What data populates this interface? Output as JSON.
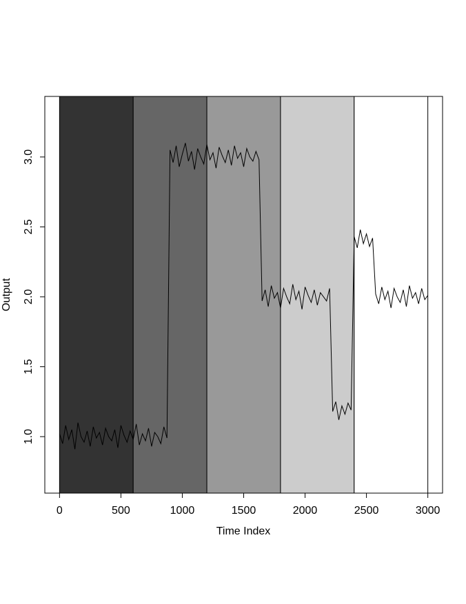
{
  "chart_data": {
    "type": "line",
    "xlabel": "Time Index",
    "ylabel": "Output",
    "xlim": [
      -120,
      3120
    ],
    "ylim": [
      0.596,
      3.433
    ],
    "xticks": [
      0,
      500,
      1000,
      1500,
      2000,
      2500,
      3000
    ],
    "yticks": [
      {
        "value": 1,
        "label": "1.0"
      },
      1.5,
      {
        "value": 2,
        "label": "2.0"
      },
      2.5,
      {
        "value": 3,
        "label": "3.0"
      }
    ],
    "regions": [
      {
        "start": 0,
        "end": 600,
        "color": "#333333"
      },
      {
        "start": 600,
        "end": 1200,
        "color": "#666666"
      },
      {
        "start": 1200,
        "end": 1800,
        "color": "#999999"
      },
      {
        "start": 1800,
        "end": 2400,
        "color": "#cccccc"
      },
      {
        "start": 2400,
        "end": 3000,
        "color": "#ffffff"
      }
    ],
    "x": [
      0,
      25,
      50,
      75,
      100,
      125,
      150,
      175,
      200,
      225,
      250,
      275,
      300,
      325,
      350,
      375,
      400,
      425,
      450,
      475,
      500,
      525,
      550,
      575,
      600,
      625,
      650,
      675,
      700,
      725,
      750,
      775,
      800,
      825,
      850,
      875,
      900,
      925,
      950,
      975,
      1000,
      1025,
      1050,
      1075,
      1100,
      1125,
      1150,
      1175,
      1200,
      1225,
      1250,
      1275,
      1300,
      1325,
      1350,
      1375,
      1400,
      1425,
      1450,
      1475,
      1500,
      1525,
      1550,
      1575,
      1600,
      1625,
      1650,
      1675,
      1700,
      1725,
      1750,
      1775,
      1800,
      1825,
      1850,
      1875,
      1900,
      1925,
      1950,
      1975,
      2000,
      2025,
      2050,
      2075,
      2100,
      2125,
      2150,
      2175,
      2200,
      2225,
      2250,
      2275,
      2300,
      2325,
      2350,
      2375,
      2400,
      2425,
      2450,
      2475,
      2500,
      2525,
      2550,
      2575,
      2600,
      2625,
      2650,
      2675,
      2700,
      2725,
      2750,
      2775,
      2800,
      2825,
      2850,
      2875,
      2900,
      2925,
      2950,
      2975,
      3000
    ],
    "series": [
      {
        "color": "#000000",
        "values": [
          1.02,
          0.95,
          1.08,
          0.98,
          1.05,
          0.91,
          1.1,
          1.0,
          0.96,
          1.04,
          0.93,
          1.07,
          0.99,
          1.03,
          0.94,
          1.06,
          1.0,
          0.97,
          1.05,
          0.92,
          1.08,
          1.01,
          0.96,
          1.04,
          0.98,
          1.09,
          0.94,
          1.02,
          0.97,
          1.06,
          0.93,
          1.03,
          1.0,
          0.95,
          1.07,
          0.99,
          3.05,
          2.96,
          3.08,
          2.93,
          3.02,
          3.1,
          2.97,
          3.04,
          2.91,
          3.06,
          3.0,
          2.95,
          3.09,
          2.98,
          3.03,
          2.92,
          3.07,
          3.01,
          2.96,
          3.05,
          2.94,
          3.08,
          2.99,
          3.03,
          2.93,
          3.06,
          3.0,
          2.97,
          3.04,
          2.98,
          1.97,
          2.05,
          1.93,
          2.08,
          1.99,
          2.03,
          1.92,
          2.06,
          2.0,
          1.95,
          2.09,
          1.98,
          2.04,
          1.91,
          2.07,
          2.01,
          1.96,
          2.05,
          1.94,
          2.03,
          2.0,
          1.97,
          2.06,
          1.18,
          1.25,
          1.12,
          1.22,
          1.16,
          1.24,
          1.19,
          2.43,
          2.35,
          2.48,
          2.38,
          2.45,
          2.36,
          2.42,
          2.02,
          1.95,
          2.07,
          1.98,
          2.04,
          1.92,
          2.06,
          2.0,
          1.96,
          2.05,
          1.93,
          2.08,
          1.99,
          2.03,
          1.95,
          2.06,
          1.98,
          2.01
        ]
      }
    ]
  }
}
